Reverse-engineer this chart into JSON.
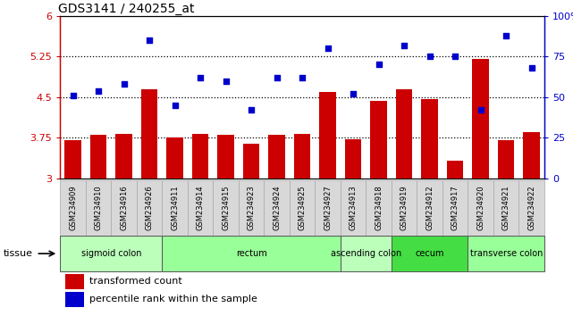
{
  "title": "GDS3141 / 240255_at",
  "samples": [
    "GSM234909",
    "GSM234910",
    "GSM234916",
    "GSM234926",
    "GSM234911",
    "GSM234914",
    "GSM234915",
    "GSM234923",
    "GSM234924",
    "GSM234925",
    "GSM234927",
    "GSM234913",
    "GSM234918",
    "GSM234919",
    "GSM234912",
    "GSM234917",
    "GSM234920",
    "GSM234921",
    "GSM234922"
  ],
  "bar_values": [
    3.7,
    3.8,
    3.82,
    4.65,
    3.75,
    3.83,
    3.8,
    3.65,
    3.8,
    3.82,
    4.6,
    3.72,
    4.43,
    4.65,
    4.47,
    3.33,
    5.2,
    3.7,
    3.85
  ],
  "dot_values": [
    51,
    54,
    58,
    85,
    45,
    62,
    60,
    42,
    62,
    62,
    80,
    52,
    70,
    82,
    75,
    75,
    42,
    88,
    68
  ],
  "bar_color": "#CC0000",
  "dot_color": "#0000CC",
  "ylim_left": [
    3,
    6
  ],
  "ylim_right": [
    0,
    100
  ],
  "yticks_left": [
    3,
    3.75,
    4.5,
    5.25,
    6
  ],
  "yticks_right": [
    0,
    25,
    50,
    75,
    100
  ],
  "ytick_labels_left": [
    "3",
    "3.75",
    "4.5",
    "5.25",
    "6"
  ],
  "ytick_labels_right": [
    "0",
    "25",
    "50",
    "75",
    "100%"
  ],
  "hlines": [
    3.75,
    4.5,
    5.25
  ],
  "tissue_groups": [
    {
      "label": "sigmoid colon",
      "start": 0,
      "end": 4,
      "color": "#bbffbb"
    },
    {
      "label": "rectum",
      "start": 4,
      "end": 11,
      "color": "#99ff99"
    },
    {
      "label": "ascending colon",
      "start": 11,
      "end": 13,
      "color": "#bbffbb"
    },
    {
      "label": "cecum",
      "start": 13,
      "end": 16,
      "color": "#44dd44"
    },
    {
      "label": "transverse colon",
      "start": 16,
      "end": 19,
      "color": "#99ff99"
    }
  ],
  "legend_bar_label": "transformed count",
  "legend_dot_label": "percentile rank within the sample",
  "tissue_label": "tissue",
  "xlabels_bg": "#d8d8d8",
  "plot_bg": "#ffffff"
}
